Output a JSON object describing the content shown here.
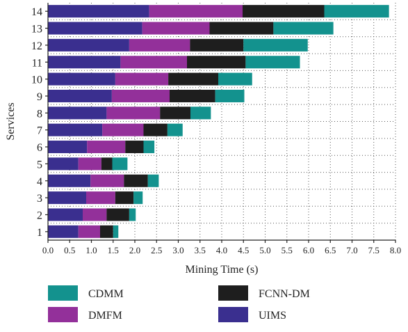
{
  "chart_data": {
    "type": "bar",
    "orientation": "horizontal",
    "stacked": true,
    "title": "",
    "xlabel": "Mining Time (s)",
    "ylabel": "Services",
    "xlim": [
      0,
      8.0
    ],
    "x_ticks": [
      "0.0",
      "0.5",
      "1.0",
      "1.5",
      "2.0",
      "2.5",
      "3.0",
      "3.5",
      "4.0",
      "4.5",
      "5.0",
      "5.5",
      "6.0",
      "6.5",
      "7.0",
      "7.5",
      "8.0"
    ],
    "categories": [
      "1",
      "2",
      "3",
      "4",
      "5",
      "6",
      "7",
      "8",
      "9",
      "10",
      "11",
      "12",
      "13",
      "14"
    ],
    "grid": "vertical dotted",
    "legend_position": "bottom",
    "series": [
      {
        "name": "UIMS",
        "color": "#3a2f8f",
        "values": [
          0.7,
          0.8,
          0.88,
          0.98,
          0.7,
          0.9,
          1.25,
          1.35,
          1.47,
          1.55,
          1.67,
          1.87,
          2.17,
          2.33
        ]
      },
      {
        "name": "DMFM",
        "color": "#93309a",
        "values": [
          0.5,
          0.55,
          0.67,
          0.77,
          0.53,
          0.88,
          0.95,
          1.23,
          1.33,
          1.22,
          1.53,
          1.4,
          1.55,
          2.15
        ]
      },
      {
        "name": "FCNN-DM",
        "color": "#1e1e1e",
        "values": [
          0.3,
          0.52,
          0.42,
          0.55,
          0.25,
          0.42,
          0.55,
          0.7,
          1.05,
          1.15,
          1.35,
          1.23,
          1.47,
          1.88
        ]
      },
      {
        "name": "CDMM",
        "color": "#13928e",
        "values": [
          0.12,
          0.15,
          0.21,
          0.25,
          0.35,
          0.25,
          0.35,
          0.47,
          0.67,
          0.78,
          1.25,
          1.48,
          1.38,
          1.49
        ]
      }
    ]
  },
  "legend": [
    {
      "label": "CDMM",
      "color": "#13928e"
    },
    {
      "label": "FCNN-DM",
      "color": "#1e1e1e"
    },
    {
      "label": "DMFM",
      "color": "#93309a"
    },
    {
      "label": "UIMS",
      "color": "#3a2f8f"
    }
  ]
}
